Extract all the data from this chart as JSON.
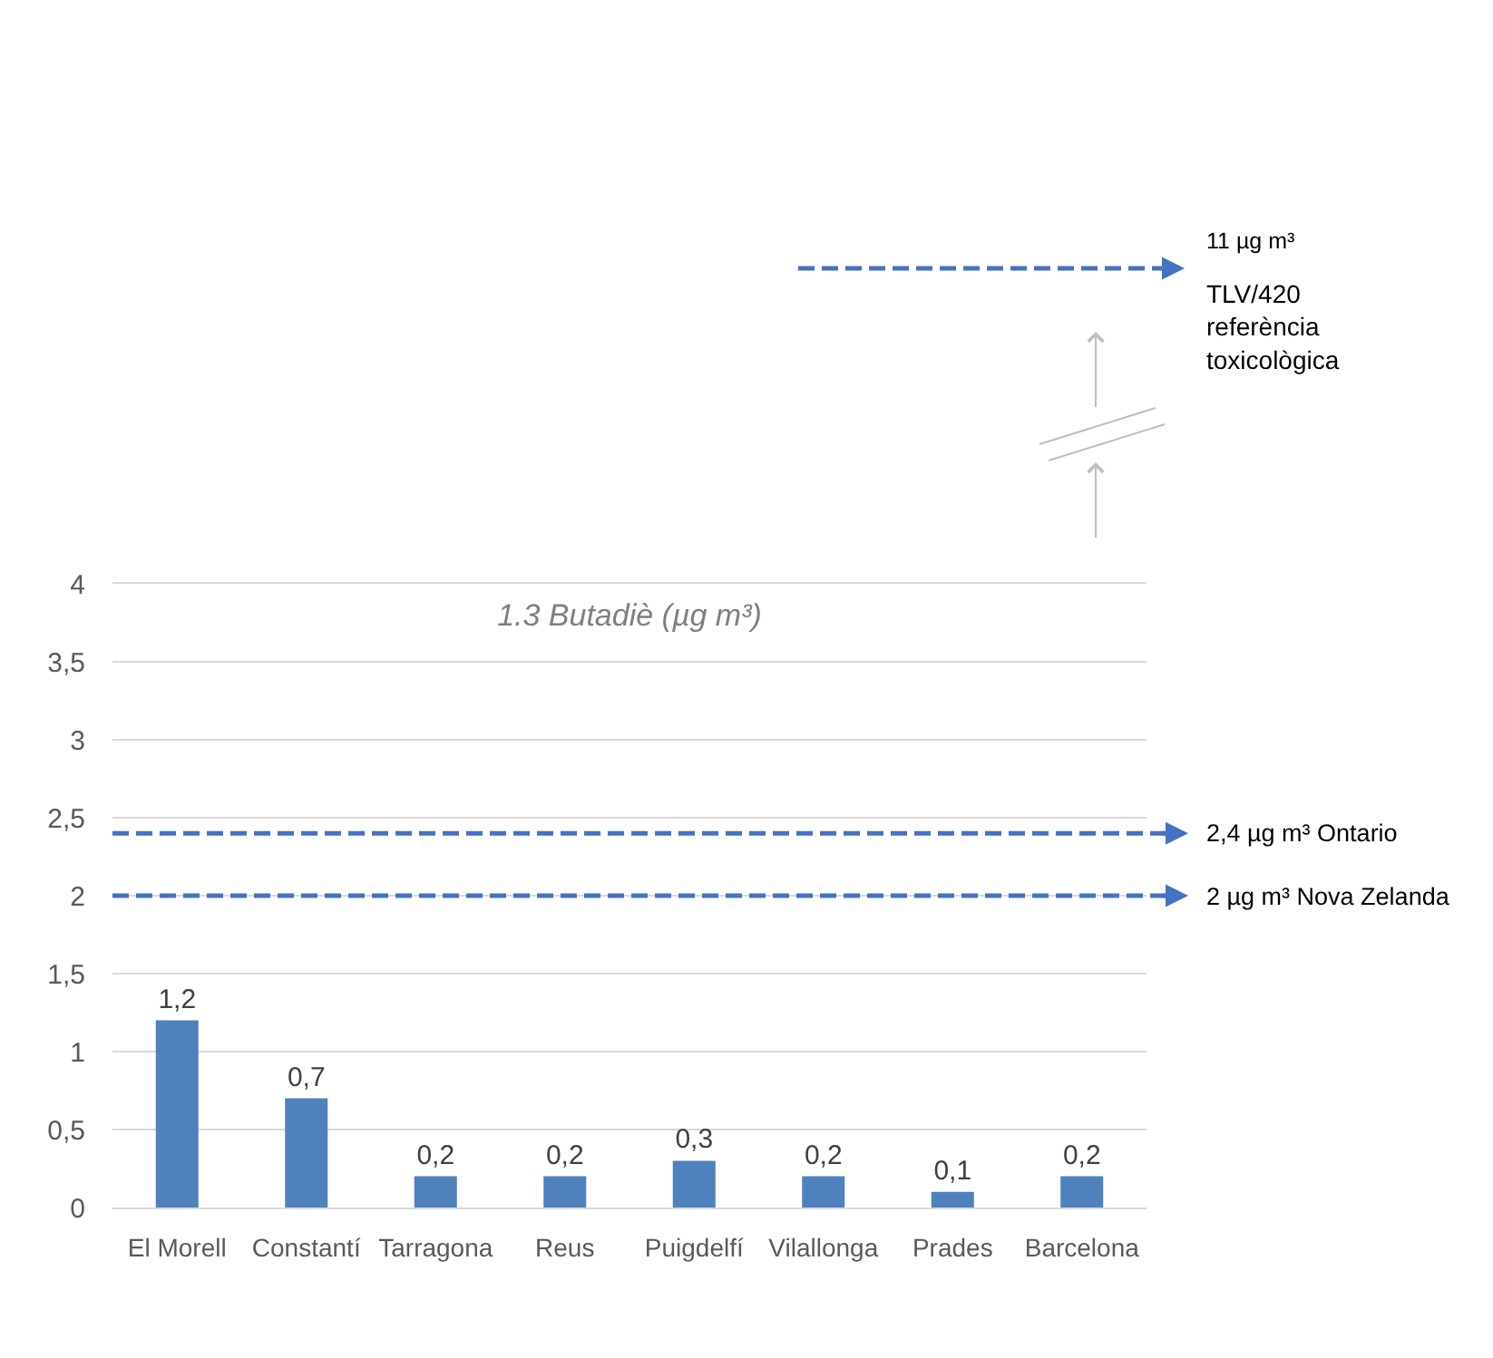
{
  "chart_data": {
    "type": "bar",
    "title": "1.3 Butadiè (µg m³)",
    "categories": [
      "El Morell",
      "Constantí",
      "Tarragona",
      "Reus",
      "Puigdelfí",
      "Vilallonga",
      "Prades",
      "Barcelona"
    ],
    "values": [
      1.2,
      0.7,
      0.2,
      0.2,
      0.3,
      0.2,
      0.1,
      0.2
    ],
    "value_labels": [
      "1,2",
      "0,7",
      "0,2",
      "0,2",
      "0,3",
      "0,2",
      "0,1",
      "0,2"
    ],
    "color": "#4f81bd",
    "ylim": [
      0,
      4
    ],
    "yticks": [
      0,
      {
        "value": 0.5,
        "label": "0,5"
      },
      1,
      {
        "value": 1.5,
        "label": "1,5"
      },
      2,
      {
        "value": 2.5,
        "label": "2,5"
      },
      3,
      {
        "value": 3.5,
        "label": "3,5"
      },
      4
    ],
    "grid": "y",
    "ref_lines": [
      {
        "axis": "y",
        "value": 2.4,
        "label": "2,4 µg m³ Ontario",
        "color": "#4472c4",
        "line_style": "dashed"
      },
      {
        "axis": "y",
        "value": 2,
        "label": "2 µg m³ Nova Zelanda",
        "color": "#4472c4",
        "line_style": "dashed"
      }
    ],
    "annotations": [
      "11 µg m³",
      "TLV/420 referència toxicològica"
    ]
  }
}
